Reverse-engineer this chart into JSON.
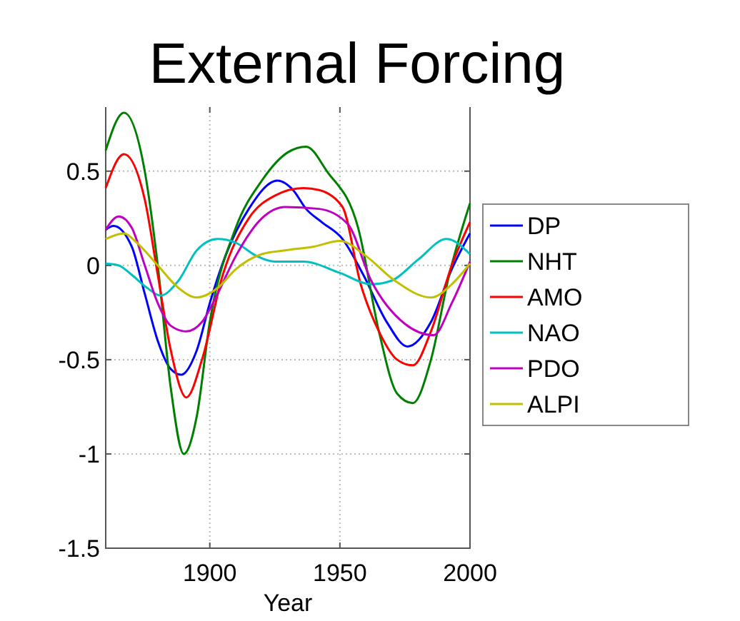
{
  "chart_data": {
    "type": "line",
    "title": "External Forcing",
    "xlabel": "Year",
    "xlim": [
      1860,
      2000
    ],
    "xticks": [
      1900,
      1950,
      2000
    ],
    "ylim": [
      -1.5,
      0.84
    ],
    "yticks": [
      -1.5,
      -1,
      -0.5,
      0,
      0.5
    ],
    "grid": true,
    "legend": "right",
    "series": [
      {
        "name": "DP",
        "color": "#0000ff",
        "x": [
          1860,
          1863,
          1870,
          1875,
          1880,
          1885,
          1889,
          1895,
          1900,
          1906,
          1915,
          1926,
          1932,
          1937,
          1943,
          1951,
          1959,
          1968,
          1976,
          1985,
          1993,
          2000
        ],
        "values": [
          0.19,
          0.21,
          0.1,
          -0.15,
          -0.4,
          -0.55,
          -0.58,
          -0.45,
          -0.2,
          0.05,
          0.3,
          0.45,
          0.4,
          0.3,
          0.23,
          0.14,
          -0.05,
          -0.3,
          -0.43,
          -0.3,
          -0.02,
          0.17
        ]
      },
      {
        "name": "NHT",
        "color": "#008000",
        "x": [
          1860,
          1867,
          1875,
          1880,
          1885,
          1890,
          1895,
          1900,
          1910,
          1920,
          1930,
          1937,
          1945,
          1957,
          1965,
          1972,
          1978,
          1985,
          1992,
          2000
        ],
        "values": [
          0.61,
          0.81,
          0.5,
          0,
          -0.65,
          -1.0,
          -0.8,
          -0.3,
          0.2,
          0.45,
          0.6,
          0.63,
          0.5,
          0.2,
          -0.35,
          -0.68,
          -0.73,
          -0.5,
          -0.05,
          0.33
        ]
      },
      {
        "name": "AMO",
        "color": "#ff0000",
        "x": [
          1860,
          1867,
          1875,
          1880,
          1885,
          1891,
          1897,
          1905,
          1915,
          1925,
          1936,
          1942,
          1951,
          1958,
          1965,
          1972,
          1978,
          1985,
          1993,
          2000
        ],
        "values": [
          0.41,
          0.59,
          0.35,
          -0.05,
          -0.45,
          -0.7,
          -0.5,
          -0.05,
          0.25,
          0.37,
          0.41,
          0.4,
          0.31,
          -0.1,
          -0.35,
          -0.5,
          -0.53,
          -0.35,
          0,
          0.23
        ]
      },
      {
        "name": "NAO",
        "color": "#00c0c0",
        "x": [
          1860,
          1865,
          1870,
          1876,
          1881,
          1888,
          1895,
          1903,
          1910,
          1918,
          1925,
          1936,
          1950,
          1962,
          1970,
          1980,
          1991,
          2000
        ],
        "values": [
          0.01,
          0,
          -0.05,
          -0.12,
          -0.16,
          -0.08,
          0.08,
          0.14,
          0.12,
          0.05,
          0.02,
          0.02,
          -0.04,
          -0.1,
          -0.08,
          0.03,
          0.14,
          0.06
        ]
      },
      {
        "name": "PDO",
        "color": "#c000c0",
        "x": [
          1860,
          1865,
          1870,
          1875,
          1880,
          1885,
          1891,
          1897,
          1903,
          1910,
          1920,
          1929,
          1942,
          1953,
          1962,
          1975,
          1986,
          1993,
          2000
        ],
        "values": [
          0.19,
          0.26,
          0.2,
          0,
          -0.2,
          -0.32,
          -0.35,
          -0.3,
          -0.15,
          0.05,
          0.25,
          0.31,
          0.3,
          0.22,
          -0.08,
          -0.31,
          -0.37,
          -0.2,
          0.02
        ]
      },
      {
        "name": "ALPI",
        "color": "#c0c000",
        "x": [
          1860,
          1867,
          1872,
          1880,
          1888,
          1895,
          1903,
          1910,
          1920,
          1929,
          1940,
          1950,
          1960,
          1971,
          1985,
          1993,
          2000
        ],
        "values": [
          0.14,
          0.17,
          0.12,
          0,
          -0.12,
          -0.17,
          -0.12,
          -0.02,
          0.06,
          0.08,
          0.1,
          0.13,
          0.05,
          -0.08,
          -0.17,
          -0.1,
          0.01
        ]
      }
    ]
  }
}
